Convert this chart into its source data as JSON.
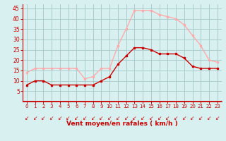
{
  "hours": [
    0,
    1,
    2,
    3,
    4,
    5,
    6,
    7,
    8,
    9,
    10,
    11,
    12,
    13,
    14,
    15,
    16,
    17,
    18,
    19,
    20,
    21,
    22,
    23
  ],
  "wind_avg": [
    8,
    10,
    10,
    8,
    8,
    8,
    8,
    8,
    8,
    10,
    12,
    18,
    22,
    26,
    26,
    25,
    23,
    23,
    23,
    21,
    17,
    16,
    16,
    16
  ],
  "wind_gust": [
    14,
    16,
    16,
    16,
    16,
    16,
    16,
    11,
    12,
    16,
    16,
    27,
    35,
    44,
    44,
    44,
    42,
    41,
    40,
    37,
    32,
    27,
    20,
    19
  ],
  "bg_color": "#d8f0f0",
  "avg_color": "#cc0000",
  "gust_color": "#ffaaaa",
  "grid_color": "#aacccc",
  "xlabel": "Vent moyen/en rafales ( km/h )",
  "xlabel_color": "#cc0000",
  "tick_color": "#cc0000",
  "spine_color": "#cc0000",
  "ylim": [
    0,
    47
  ],
  "yticks": [
    5,
    10,
    15,
    20,
    25,
    30,
    35,
    40,
    45
  ],
  "arrow_char": "↙"
}
